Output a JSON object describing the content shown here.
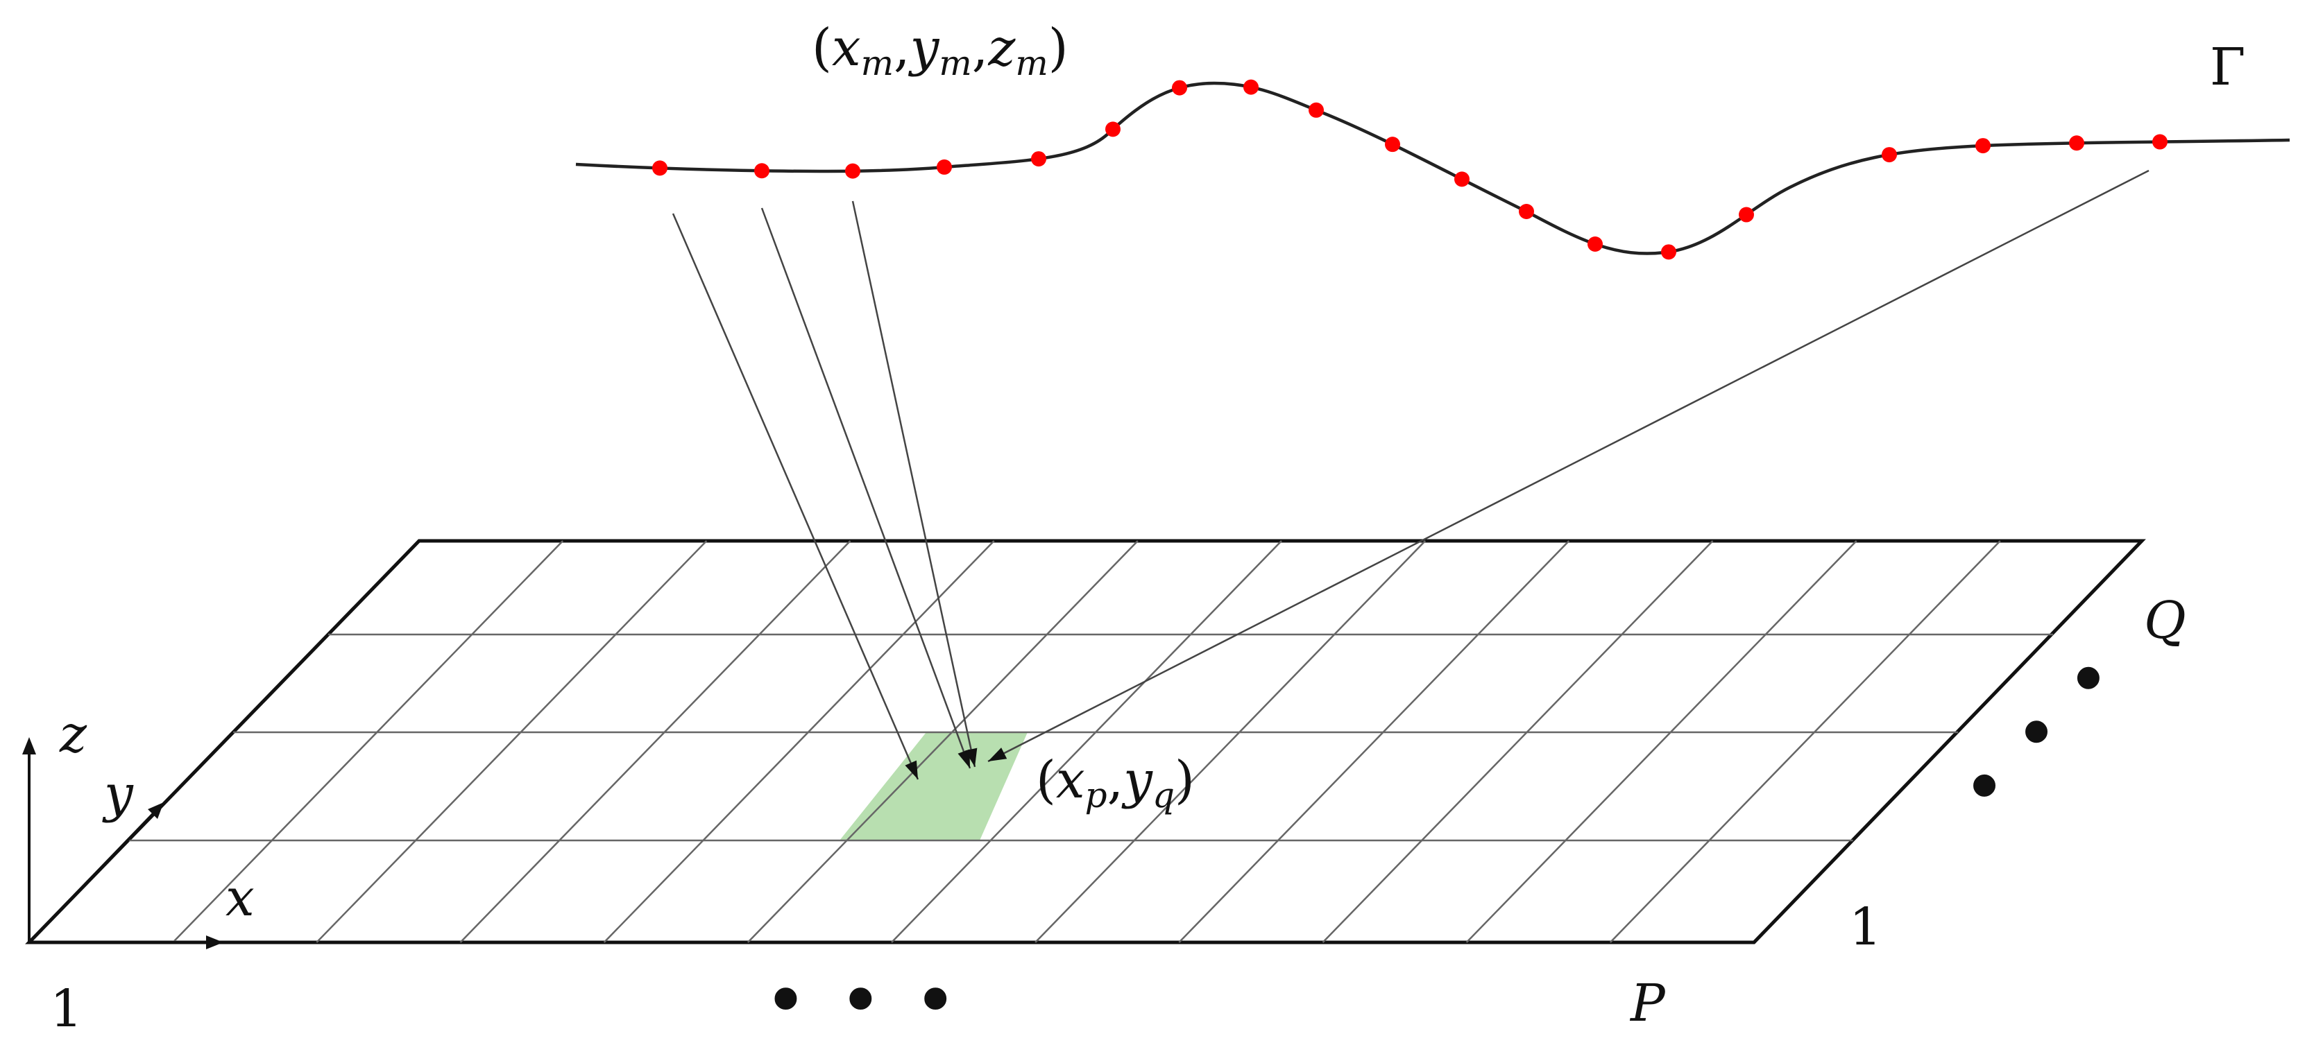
{
  "curve": {
    "name": "Γ",
    "point_label": {
      "open": "(",
      "x": "x",
      "y": "y",
      "z": "z",
      "sub": "m",
      "sep": ",",
      "close": ")"
    },
    "point_color": "#ff0000"
  },
  "grid": {
    "cell_label": {
      "open": "(",
      "x": "x",
      "sub_x": "p",
      "sep": ",",
      "y": "y",
      "sub_y": "q",
      "close": ")"
    },
    "highlight_color": "#b8dfb0",
    "origin_label": "1",
    "x_end_label": "P",
    "y_start_label": "1",
    "y_end_label": "Q",
    "x_ellipsis": "• • •",
    "y_ellipsis": "• • •"
  },
  "axes": {
    "x": "x",
    "y": "y",
    "z": "z"
  }
}
